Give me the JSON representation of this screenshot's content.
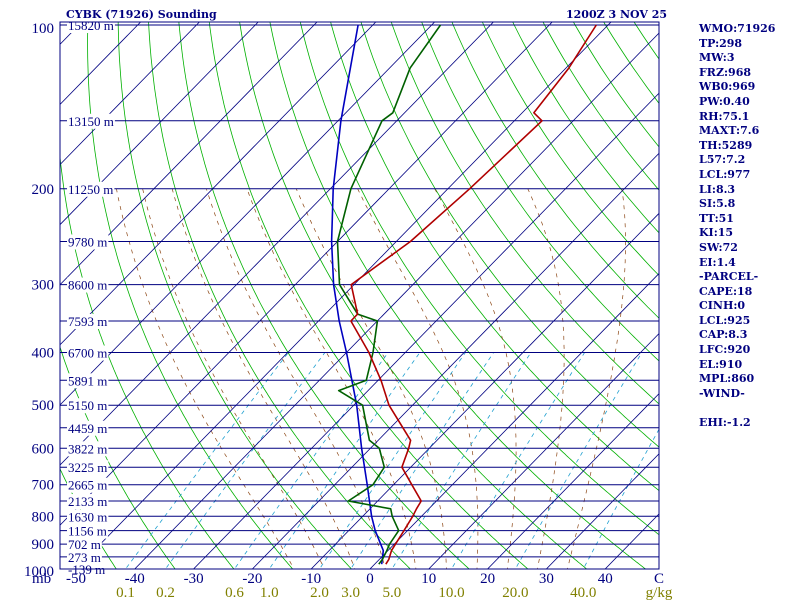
{
  "header": {
    "title": "CYBK (71926) Sounding",
    "datetime": "1200Z  3 NOV 25"
  },
  "indices": [
    "WMO:71926",
    "TP:298",
    "MW:3",
    "FRZ:968",
    "WB0:969",
    "PW:0.40",
    "RH:75.1",
    "MAXT:7.6",
    "TH:5289",
    "L57:7.2",
    "LCL:977",
    "LI:8.3",
    "SI:5.8",
    "TT:51",
    "KI:15",
    "SW:72",
    "EI:1.4",
    "-PARCEL-",
    "CAPE:18",
    "CINH:0",
    "LCL:925",
    "CAP:8.3",
    "LFC:920",
    "EL:910",
    "MPL:860",
    "-WIND-",
    "",
    "EHI:-1.2"
  ],
  "colors": {
    "background": "#ffffff",
    "isobar": "#000080",
    "isotherm": "#000080",
    "dry_adiabat": "#00b000",
    "moist_adiabat": "#8b4513",
    "mixing_ratio": "#20a0d0",
    "temperature": "#b00000",
    "dewpoint": "#006000",
    "parcel": "#0000c0",
    "axis_label": "#000080",
    "mixing_label": "#808000"
  },
  "chart_data": {
    "type": "skew-t",
    "title": "CYBK (71926) Sounding",
    "pressure_unit": "mb",
    "temperature_unit": "C",
    "mixing_ratio_unit": "g/kg",
    "pressure_range": [
      1000,
      100
    ],
    "temperature_ticks": [
      -50,
      -40,
      -30,
      -20,
      -10,
      0,
      10,
      20,
      30,
      40
    ],
    "temperature_axis_end_label": "C",
    "pressure_tick_labels": [
      1000,
      900,
      800,
      700,
      600,
      500,
      400,
      300,
      200,
      100
    ],
    "height_levels": [
      {
        "p": 100,
        "h": "15820 m"
      },
      {
        "p": 150,
        "h": "13150 m"
      },
      {
        "p": 200,
        "h": "11250 m"
      },
      {
        "p": 250,
        "h": "9780 m"
      },
      {
        "p": 300,
        "h": "8600 m"
      },
      {
        "p": 350,
        "h": "7593 m"
      },
      {
        "p": 400,
        "h": "6700 m"
      },
      {
        "p": 450,
        "h": "5891 m"
      },
      {
        "p": 500,
        "h": "5150 m"
      },
      {
        "p": 550,
        "h": "4459 m"
      },
      {
        "p": 600,
        "h": "3822 m"
      },
      {
        "p": 650,
        "h": "3225 m"
      },
      {
        "p": 700,
        "h": "2665 m"
      },
      {
        "p": 750,
        "h": "2133 m"
      },
      {
        "p": 800,
        "h": "1630 m"
      },
      {
        "p": 850,
        "h": "1156 m"
      },
      {
        "p": 900,
        "h": "702 m"
      },
      {
        "p": 950,
        "h": "273 m"
      },
      {
        "p": 1000,
        "h": "-139 m"
      }
    ],
    "mixing_ratio_labels": [
      "0.1",
      "0.2",
      "0.6",
      "1.0",
      "2.0",
      "3.0",
      "5.0",
      "10.0",
      "20.0",
      "40.0"
    ],
    "mixing_ratio_values": [
      0.1,
      0.2,
      0.6,
      1.0,
      2.0,
      3.0,
      5.0,
      10.0,
      20.0,
      40.0
    ],
    "dry_adiabats_K": [
      220,
      230,
      240,
      250,
      260,
      270,
      280,
      290,
      300,
      310,
      320,
      330,
      340,
      350,
      360,
      370,
      380,
      390,
      400,
      410,
      420,
      430,
      440
    ],
    "moist_adiabats_C": [
      -10,
      -5,
      0,
      5,
      10,
      15,
      20,
      25,
      30,
      35
    ],
    "temperature_profile": [
      {
        "p": 980,
        "t": 1.9
      },
      {
        "p": 960,
        "t": 1.6
      },
      {
        "p": 925,
        "t": 0.6
      },
      {
        "p": 900,
        "t": 0.2
      },
      {
        "p": 850,
        "t": -0.6
      },
      {
        "p": 800,
        "t": -1.5
      },
      {
        "p": 775,
        "t": -2.1
      },
      {
        "p": 750,
        "t": -2.6
      },
      {
        "p": 700,
        "t": -6.9
      },
      {
        "p": 650,
        "t": -11.5
      },
      {
        "p": 600,
        "t": -13.5
      },
      {
        "p": 580,
        "t": -14.5
      },
      {
        "p": 500,
        "t": -24.0
      },
      {
        "p": 450,
        "t": -29.5
      },
      {
        "p": 400,
        "t": -36.2
      },
      {
        "p": 350,
        "t": -44.5
      },
      {
        "p": 340,
        "t": -44.5
      },
      {
        "p": 300,
        "t": -50.5
      },
      {
        "p": 250,
        "t": -47.6
      },
      {
        "p": 200,
        "t": -46.3
      },
      {
        "p": 150,
        "t": -45.3
      },
      {
        "p": 145,
        "t": -48.0
      },
      {
        "p": 120,
        "t": -49.5
      },
      {
        "p": 100,
        "t": -52.0
      }
    ],
    "dewpoint_profile": [
      {
        "p": 980,
        "td": 0.7
      },
      {
        "p": 960,
        "td": 0.5
      },
      {
        "p": 925,
        "td": -0.2
      },
      {
        "p": 900,
        "td": -0.8
      },
      {
        "p": 850,
        "td": -1.5
      },
      {
        "p": 800,
        "td": -5.0
      },
      {
        "p": 775,
        "td": -6.5
      },
      {
        "p": 750,
        "td": -15.0
      },
      {
        "p": 700,
        "td": -13.5
      },
      {
        "p": 650,
        "td": -14.5
      },
      {
        "p": 600,
        "td": -18.5
      },
      {
        "p": 580,
        "td": -21.5
      },
      {
        "p": 500,
        "td": -28.5
      },
      {
        "p": 470,
        "td": -35.0
      },
      {
        "p": 450,
        "td": -32.0
      },
      {
        "p": 400,
        "td": -35.5
      },
      {
        "p": 350,
        "td": -40.0
      },
      {
        "p": 340,
        "td": -44.5
      },
      {
        "p": 300,
        "td": -52.5
      },
      {
        "p": 250,
        "td": -60.0
      },
      {
        "p": 200,
        "td": -66.5
      },
      {
        "p": 150,
        "td": -72.5
      },
      {
        "p": 145,
        "td": -72.0
      },
      {
        "p": 120,
        "td": -76.5
      },
      {
        "p": 100,
        "td": -78.5
      }
    ],
    "parcel_profile": [
      {
        "p": 980,
        "t": 1.2
      },
      {
        "p": 925,
        "t": -0.8
      },
      {
        "p": 850,
        "t": -5.5
      },
      {
        "p": 800,
        "t": -8.5
      },
      {
        "p": 700,
        "t": -14.5
      },
      {
        "p": 600,
        "t": -21.5
      },
      {
        "p": 500,
        "t": -29.5
      },
      {
        "p": 400,
        "t": -40.0
      },
      {
        "p": 350,
        "t": -46.5
      },
      {
        "p": 300,
        "t": -53.5
      },
      {
        "p": 250,
        "t": -61.0
      },
      {
        "p": 200,
        "t": -69.5
      },
      {
        "p": 150,
        "t": -79.5
      },
      {
        "p": 100,
        "t": -92.5
      }
    ]
  }
}
